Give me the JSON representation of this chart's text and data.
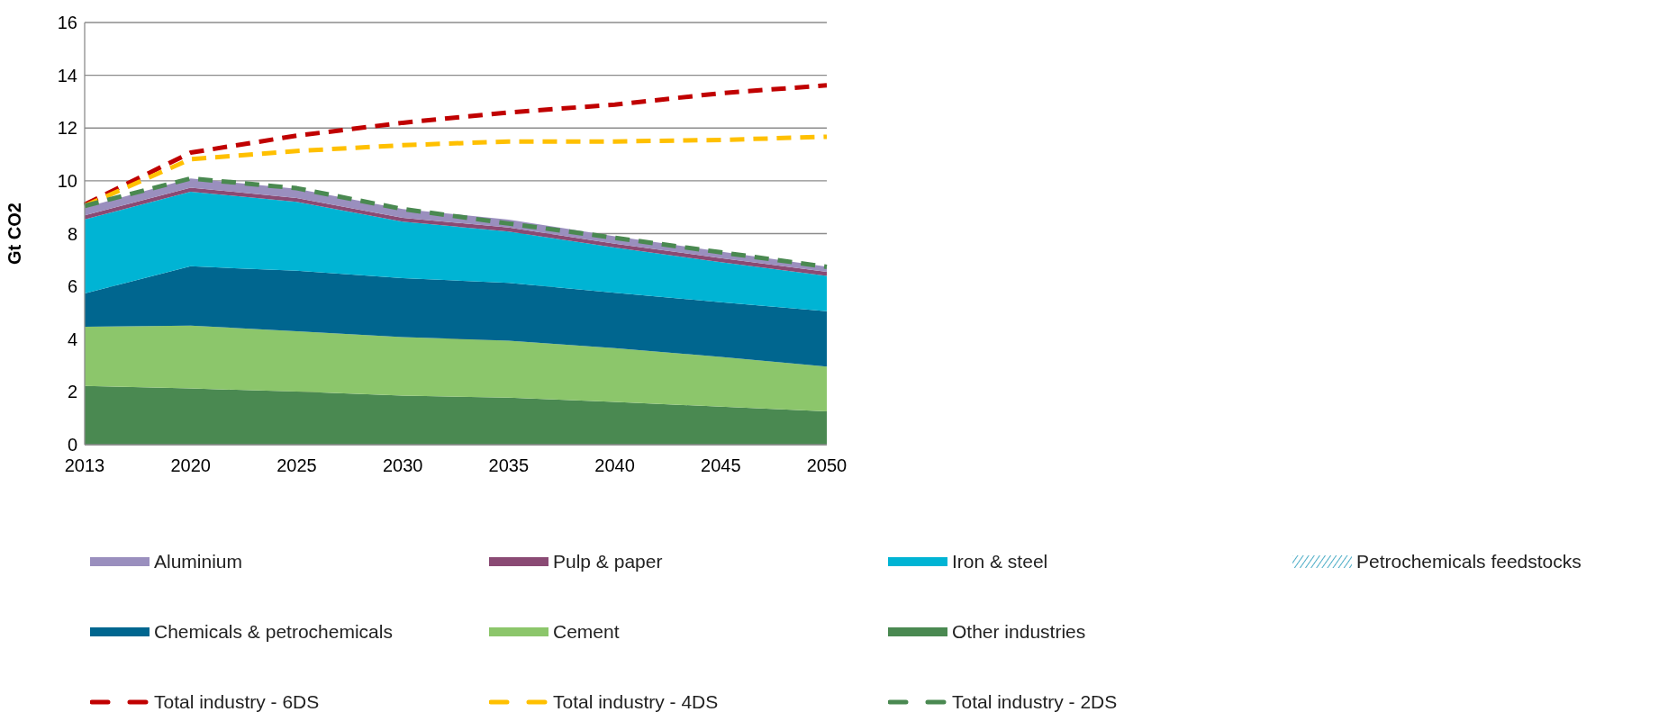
{
  "chart_data": {
    "type": "area",
    "stacked": true,
    "ylabel": "Gt CO2",
    "categories": [
      "2013",
      "2020",
      "2025",
      "2030",
      "2035",
      "2040",
      "2045",
      "2050"
    ],
    "ylim": [
      0,
      16
    ],
    "yticks": [
      0,
      2,
      4,
      6,
      8,
      10,
      12,
      14,
      16
    ],
    "grid": "y",
    "legend": "bottom",
    "series": [
      {
        "name": "Other industries",
        "color": "#4a8951",
        "values": [
          2.23,
          2.13,
          2.01,
          1.86,
          1.78,
          1.62,
          1.44,
          1.26
        ]
      },
      {
        "name": "Cement",
        "color": "#8cc66b",
        "values": [
          2.24,
          2.38,
          2.29,
          2.22,
          2.16,
          2.04,
          1.89,
          1.7
        ]
      },
      {
        "name": "Chemicals & petrochemicals",
        "color": "#00668f",
        "values": [
          1.26,
          2.25,
          2.29,
          2.23,
          2.19,
          2.1,
          2.07,
          2.1
        ]
      },
      {
        "name": "Petrochemicals feedstocks",
        "color": "#4bacc6",
        "values": [
          null,
          null,
          null,
          null,
          null,
          null,
          null,
          null
        ]
      },
      {
        "name": "Iron & steel",
        "color": "#00b4d4",
        "values": [
          2.81,
          2.83,
          2.61,
          2.14,
          1.95,
          1.71,
          1.52,
          1.34
        ]
      },
      {
        "name": "Pulp & paper",
        "color": "#8a4a74",
        "values": [
          0.15,
          0.15,
          0.15,
          0.15,
          0.15,
          0.15,
          0.15,
          0.15
        ]
      },
      {
        "name": "Aluminium",
        "color": "#9a8fbe",
        "values": [
          0.3,
          0.35,
          0.35,
          0.33,
          0.3,
          0.28,
          0.25,
          0.2
        ]
      },
      {
        "name": "Total industry - 6DS",
        "type": "line",
        "line_style": "dashed",
        "color": "#c00000",
        "values": [
          9.1,
          11.07,
          11.71,
          12.2,
          12.59,
          12.89,
          13.32,
          13.62
        ]
      },
      {
        "name": "Total industry - 4DS",
        "type": "line",
        "line_style": "dashed",
        "color": "#ffc000",
        "values": [
          9.05,
          10.82,
          11.13,
          11.35,
          11.49,
          11.49,
          11.55,
          11.67
        ]
      },
      {
        "name": "Total industry - 2DS",
        "type": "line",
        "line_style": "dashed",
        "color": "#4a8951",
        "values": [
          9.05,
          10.09,
          9.72,
          8.93,
          8.38,
          7.84,
          7.29,
          6.74
        ]
      }
    ]
  }
}
